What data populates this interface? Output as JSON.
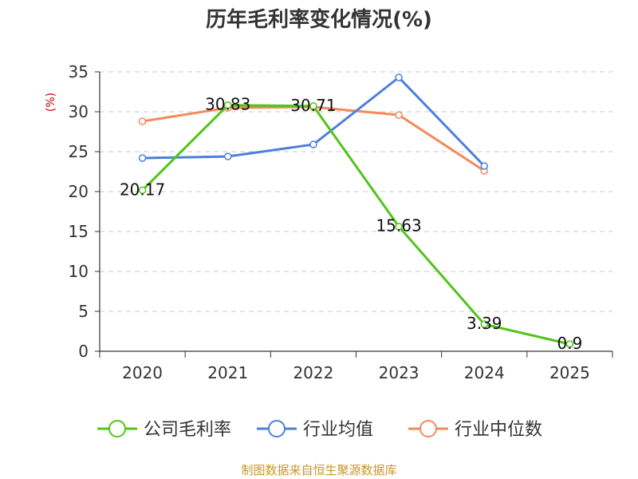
{
  "chart_data": {
    "type": "line",
    "title": "历年毛利率变化情况(%)",
    "ylabel": "(%)",
    "categories": [
      "2020",
      "2021",
      "2022",
      "2023",
      "2024",
      "2025"
    ],
    "ylim": [
      0,
      35
    ],
    "yticks": [
      0,
      5,
      10,
      15,
      20,
      25,
      30,
      35
    ],
    "grid": true,
    "legend_position": "bottom",
    "series": [
      {
        "name": "公司毛利率",
        "color": "#52c41a",
        "values": [
          20.17,
          30.83,
          30.71,
          15.63,
          3.39,
          0.9
        ],
        "labels": [
          "20.17",
          "30.83",
          "30.71",
          "15.63",
          "3.39",
          "0.9"
        ]
      },
      {
        "name": "行业均值",
        "color": "#4e7fdc",
        "values": [
          24.2,
          24.4,
          25.9,
          34.3,
          23.2,
          null
        ]
      },
      {
        "name": "行业中位数",
        "color": "#f5895a",
        "values": [
          28.8,
          30.5,
          30.6,
          29.6,
          22.6,
          null
        ]
      }
    ]
  },
  "source": {
    "text": "制图数据来自恒生聚源数据库",
    "color": "#c8962a"
  },
  "ylabel_color": "#cc0000"
}
